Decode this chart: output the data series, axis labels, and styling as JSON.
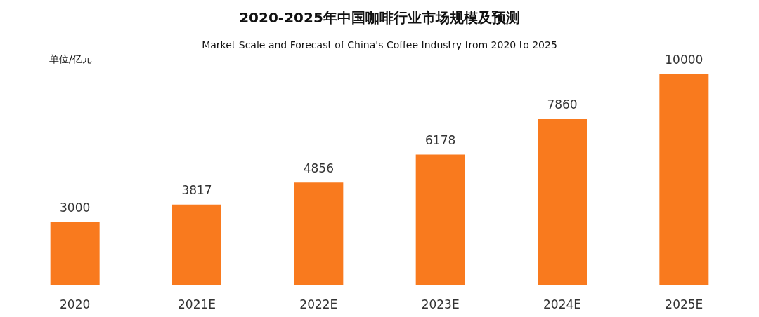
{
  "chart_data": {
    "type": "bar",
    "title": "2020-2025年中国咖啡行业市场规模及预测",
    "subtitle": "Market Scale and Forecast of China's Coffee Industry from 2020 to 2025",
    "ylabel": "单位/亿元",
    "categories": [
      "2020",
      "2021E",
      "2022E",
      "2023E",
      "2024E",
      "2025E"
    ],
    "values": [
      3000,
      3817,
      4856,
      6178,
      7860,
      10000
    ],
    "color": "#f97a1e",
    "data_labels": true
  }
}
